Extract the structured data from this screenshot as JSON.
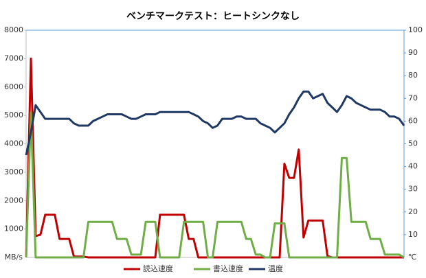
{
  "chart_data": {
    "type": "line",
    "title": "ベンチマークテスト：ヒートシンクなし",
    "y_label": "MB/s",
    "y2_label": "℃",
    "ylim": [
      0,
      8000
    ],
    "yticks": [
      1000,
      2000,
      3000,
      4000,
      5000,
      6000,
      7000,
      8000
    ],
    "y2lim": [
      0,
      100
    ],
    "y2ticks": [
      10,
      20,
      30,
      40,
      50,
      60,
      70,
      80,
      90,
      100
    ],
    "legend": "bottom",
    "series": [
      {
        "name": "読込速度",
        "color": "#c00000",
        "values": [
          0,
          7000,
          750,
          800,
          1500,
          1500,
          1500,
          650,
          650,
          650,
          30,
          30,
          30,
          0,
          0,
          0,
          0,
          0,
          0,
          0,
          0,
          0,
          0,
          0,
          0,
          0,
          0,
          0,
          1500,
          1500,
          1500,
          1500,
          1500,
          1500,
          650,
          650,
          0,
          0,
          0,
          0,
          0,
          0,
          0,
          0,
          0,
          0,
          0,
          0,
          0,
          0,
          0,
          0,
          0,
          0,
          3300,
          2800,
          2800,
          3800,
          700,
          1300,
          1300,
          1300,
          1300,
          50,
          0,
          0,
          0,
          0,
          0,
          0,
          0,
          0,
          0,
          0,
          0,
          0,
          0,
          0,
          0,
          0
        ]
      },
      {
        "name": "書込速度",
        "color": "#70ad47",
        "values": [
          0,
          5100,
          0,
          0,
          0,
          0,
          0,
          0,
          0,
          0,
          0,
          0,
          0,
          1250,
          1250,
          1250,
          1250,
          1250,
          1250,
          650,
          650,
          650,
          100,
          100,
          100,
          1250,
          1250,
          1250,
          0,
          0,
          0,
          0,
          0,
          1250,
          1250,
          1250,
          1250,
          1250,
          0,
          0,
          1250,
          1250,
          1250,
          1250,
          1250,
          1250,
          650,
          650,
          100,
          100,
          0,
          0,
          1200,
          1200,
          1200,
          0,
          0,
          0,
          0,
          0,
          0,
          0,
          0,
          0,
          0,
          0,
          3500,
          3500,
          1250,
          1250,
          1250,
          1250,
          650,
          650,
          650,
          100,
          100,
          100,
          100,
          0
        ]
      },
      {
        "name": "温度",
        "color": "#1f3864",
        "axis": "y2",
        "values": [
          45,
          55,
          67,
          64,
          61,
          61,
          61,
          61,
          61,
          61,
          59,
          58,
          58,
          58,
          60,
          61,
          62,
          63,
          63,
          63,
          63,
          62,
          61,
          61,
          62,
          63,
          63,
          63,
          64,
          64,
          64,
          64,
          64,
          64,
          64,
          63,
          62,
          60,
          59,
          57,
          58,
          61,
          61,
          61,
          62,
          62,
          61,
          61,
          61,
          59,
          58,
          57,
          55,
          57,
          59,
          63,
          66,
          70,
          73,
          73,
          70,
          71,
          72,
          68,
          66,
          64,
          67,
          71,
          70,
          68,
          67,
          66,
          65,
          65,
          65,
          64,
          62,
          62,
          61,
          58
        ]
      }
    ]
  }
}
